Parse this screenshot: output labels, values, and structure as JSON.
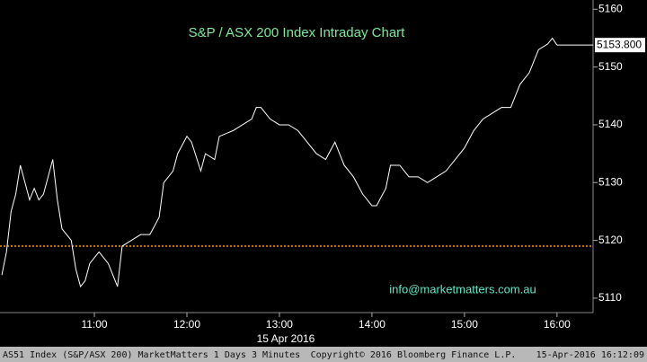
{
  "chart_data": {
    "type": "line",
    "title": "S&P / ASX 200 Index Intraday Chart",
    "watermark": "info@marketmatters.com.au",
    "x_label": "15 Apr 2016",
    "footer_left": "AS51 Index (S&P/ASX 200) MarketMatters 1 Days 3 Minutes",
    "footer_center": "Copyright© 2016 Bloomberg Finance L.P.",
    "footer_right": "15-Apr-2016 16:12:09",
    "color": "#ffffff",
    "reference_line": 5119,
    "reference_color": "#ff9900",
    "last_value": {
      "value": 5153.8,
      "label": "5153.800"
    },
    "x": [
      10.0,
      10.05,
      10.1,
      10.15,
      10.2,
      10.25,
      10.3,
      10.35,
      10.4,
      10.45,
      10.5,
      10.55,
      10.6,
      10.65,
      10.75,
      10.8,
      10.85,
      10.9,
      10.95,
      11.05,
      11.15,
      11.25,
      11.3,
      11.4,
      11.5,
      11.6,
      11.7,
      11.75,
      11.85,
      11.9,
      12.0,
      12.05,
      12.15,
      12.2,
      12.3,
      12.35,
      12.5,
      12.6,
      12.7,
      12.75,
      12.8,
      12.9,
      13.0,
      13.1,
      13.2,
      13.3,
      13.4,
      13.5,
      13.6,
      13.7,
      13.8,
      13.9,
      14.0,
      14.05,
      14.15,
      14.2,
      14.3,
      14.4,
      14.5,
      14.6,
      14.7,
      14.8,
      14.9,
      15.0,
      15.1,
      15.2,
      15.3,
      15.4,
      15.5,
      15.6,
      15.7,
      15.8,
      15.9,
      15.95,
      16.0
    ],
    "values": [
      5114,
      5118,
      5125,
      5128,
      5133,
      5130,
      5127,
      5129,
      5127,
      5128,
      5131,
      5134,
      5127,
      5122,
      5120,
      5115,
      5112,
      5113,
      5116,
      5118,
      5116,
      5112,
      5119,
      5120,
      5121,
      5121,
      5124,
      5130,
      5132,
      5135,
      5138,
      5137,
      5132,
      5135,
      5134,
      5138,
      5139,
      5140,
      5141,
      5143,
      5143,
      5141,
      5140,
      5140,
      5139,
      5137,
      5135,
      5134,
      5137,
      5133,
      5131,
      5128,
      5126,
      5126,
      5129,
      5133,
      5133,
      5131,
      5131,
      5130,
      5131,
      5132,
      5134,
      5136,
      5139,
      5141,
      5142,
      5143,
      5143,
      5147,
      5149,
      5153,
      5154,
      5155,
      5153.8
    ],
    "xlim": [
      9.98,
      16.39
    ],
    "xticks": [
      {
        "value": 11,
        "label": "11:00"
      },
      {
        "value": 12,
        "label": "12:00"
      },
      {
        "value": 13,
        "label": "13:00"
      },
      {
        "value": 14,
        "label": "14:00"
      },
      {
        "value": 15,
        "label": "15:00"
      },
      {
        "value": 16,
        "label": "16:00"
      }
    ],
    "ylim": [
      5107.5,
      5161.6
    ],
    "yticks": [
      5110,
      5120,
      5130,
      5140,
      5150,
      5160
    ]
  }
}
